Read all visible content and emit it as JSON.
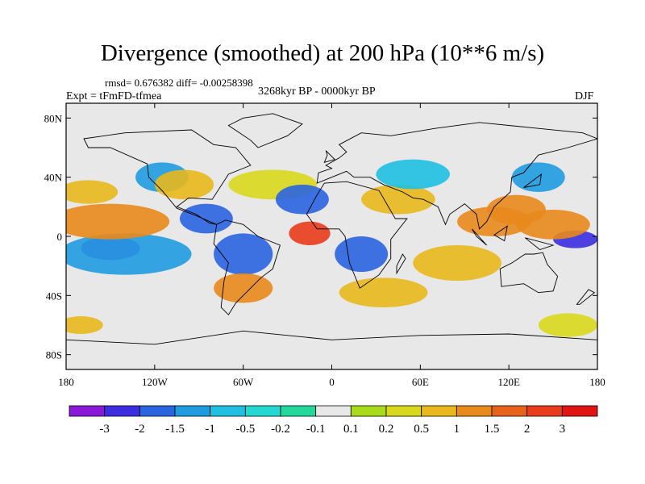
{
  "chart_data": {
    "type": "heatmap",
    "title": "Divergence (smoothed) at 200 hPa (10**6 m/s)",
    "stats_line": "rmsd= 0.676382 diff= -0.00258398",
    "experiment": "Expt = tFmFD-tfmea",
    "period": "3268kyr BP - 0000kyr BP",
    "season": "DJF",
    "xlim": [
      -180,
      180
    ],
    "ylim": [
      -90,
      90
    ],
    "x_ticks": [
      {
        "value": -180,
        "label": "180"
      },
      {
        "value": -120,
        "label": "120W"
      },
      {
        "value": -60,
        "label": "60W"
      },
      {
        "value": 0,
        "label": "0"
      },
      {
        "value": 60,
        "label": "60E"
      },
      {
        "value": 120,
        "label": "120E"
      },
      {
        "value": 180,
        "label": "180"
      }
    ],
    "y_ticks": [
      {
        "value": 80,
        "label": "80N"
      },
      {
        "value": 40,
        "label": "40N"
      },
      {
        "value": 0,
        "label": "0"
      },
      {
        "value": -40,
        "label": "40S"
      },
      {
        "value": -80,
        "label": "80S"
      }
    ],
    "colorbar": {
      "labels": [
        "-3",
        "-2",
        "-1.5",
        "-1",
        "-0.5",
        "-0.2",
        "-0.1",
        "0.1",
        "0.2",
        "0.5",
        "1",
        "1.5",
        "2",
        "3"
      ],
      "colors": [
        "#8a18d8",
        "#3c2ee0",
        "#2a64e0",
        "#1f9be0",
        "#1fc0e2",
        "#22d8d0",
        "#22d89a",
        "#e8e8e8",
        "#a8dc1a",
        "#d8d81c",
        "#e8b81c",
        "#e88a1c",
        "#e8621c",
        "#e83c1c",
        "#e01414"
      ]
    },
    "field_blobs": [
      {
        "lon": -150,
        "lat": -8,
        "rlon": 20,
        "rlat": 8,
        "value": -3
      },
      {
        "lon": -140,
        "lat": -12,
        "rlon": 45,
        "rlat": 14,
        "value": -1.2
      },
      {
        "lon": -150,
        "lat": 10,
        "rlon": 40,
        "rlat": 12,
        "value": 1.2
      },
      {
        "lon": -165,
        "lat": 30,
        "rlon": 20,
        "rlat": 8,
        "value": 0.6
      },
      {
        "lon": -115,
        "lat": 40,
        "rlon": 18,
        "rlat": 10,
        "value": -1.2
      },
      {
        "lon": -100,
        "lat": 35,
        "rlon": 20,
        "rlat": 10,
        "value": 0.8
      },
      {
        "lon": -85,
        "lat": 12,
        "rlon": 18,
        "rlat": 10,
        "value": -1.5
      },
      {
        "lon": -60,
        "lat": -12,
        "rlon": 20,
        "rlat": 14,
        "value": -1.5
      },
      {
        "lon": -60,
        "lat": -35,
        "rlon": 20,
        "rlat": 10,
        "value": 1.2
      },
      {
        "lon": -15,
        "lat": 2,
        "rlon": 14,
        "rlat": 8,
        "value": 2.5
      },
      {
        "lon": -40,
        "lat": 35,
        "rlon": 30,
        "rlat": 10,
        "value": 0.5
      },
      {
        "lon": -20,
        "lat": 25,
        "rlon": 18,
        "rlat": 10,
        "value": -1.6
      },
      {
        "lon": 20,
        "lat": -12,
        "rlon": 18,
        "rlat": 12,
        "value": -1.5
      },
      {
        "lon": 45,
        "lat": 25,
        "rlon": 25,
        "rlat": 10,
        "value": 0.8
      },
      {
        "lon": 55,
        "lat": 42,
        "rlon": 25,
        "rlat": 10,
        "value": -0.6
      },
      {
        "lon": 35,
        "lat": -38,
        "rlon": 30,
        "rlat": 10,
        "value": 0.6
      },
      {
        "lon": 85,
        "lat": -18,
        "rlon": 30,
        "rlat": 12,
        "value": 1.0
      },
      {
        "lon": 110,
        "lat": 10,
        "rlon": 25,
        "rlat": 10,
        "value": 1.5
      },
      {
        "lon": 125,
        "lat": 18,
        "rlon": 20,
        "rlat": 10,
        "value": 1.5
      },
      {
        "lon": 165,
        "lat": -2,
        "rlon": 15,
        "rlat": 6,
        "value": -2.5
      },
      {
        "lon": 150,
        "lat": 8,
        "rlon": 25,
        "rlat": 10,
        "value": 1.2
      },
      {
        "lon": 140,
        "lat": 40,
        "rlon": 18,
        "rlat": 10,
        "value": -1.2
      },
      {
        "lon": -170,
        "lat": -60,
        "rlon": 15,
        "rlat": 6,
        "value": 0.6
      },
      {
        "lon": 160,
        "lat": -60,
        "rlon": 20,
        "rlat": 8,
        "value": 0.5
      }
    ]
  }
}
